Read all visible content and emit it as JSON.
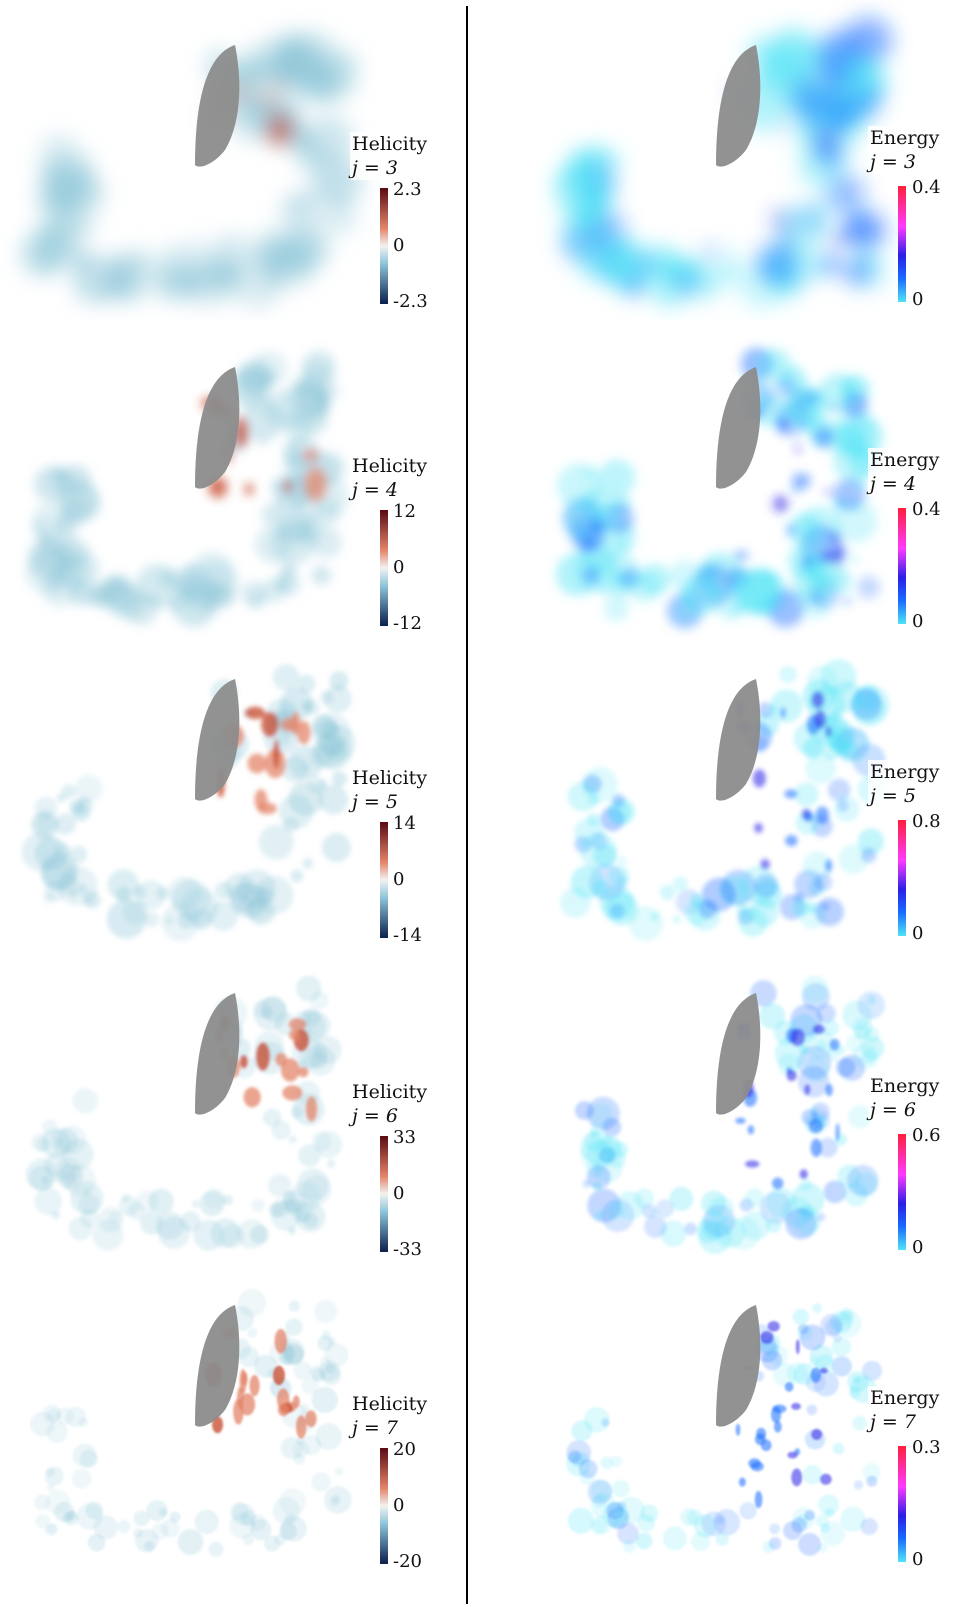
{
  "colors": {
    "helicity_top": "#5a0a14",
    "helicity_mid_hi": "#e3866a",
    "helicity_zero": "#f2f2f2",
    "helicity_mid_lo": "#8ec6d8",
    "helicity_bottom": "#0b1f4d",
    "energy_top": "#ff1f3a",
    "energy_mid_hi": "#ff3aff",
    "energy_mid": "#2a1fe8",
    "energy_mid_lo": "#1a6cff",
    "energy_bottom": "#4fe3f5",
    "shape_gray": "#8c8c8c"
  },
  "helicity": [
    {
      "title": "Helicity",
      "j": "j = 3",
      "max": "2.3",
      "zero": "0",
      "min": "-2.3"
    },
    {
      "title": "Helicity",
      "j": "j = 4",
      "max": "12",
      "zero": "0",
      "min": "-12"
    },
    {
      "title": "Helicity",
      "j": "j = 5",
      "max": "14",
      "zero": "0",
      "min": "-14"
    },
    {
      "title": "Helicity",
      "j": "j = 6",
      "max": "33",
      "zero": "0",
      "min": "-33"
    },
    {
      "title": "Helicity",
      "j": "j = 7",
      "max": "20",
      "zero": "0",
      "min": "-20"
    }
  ],
  "energy": [
    {
      "title": "Energy",
      "j": "j = 3",
      "max": "0.4",
      "min": "0"
    },
    {
      "title": "Energy",
      "j": "j = 4",
      "max": "0.4",
      "min": "0"
    },
    {
      "title": "Energy",
      "j": "j = 5",
      "max": "0.8",
      "min": "0"
    },
    {
      "title": "Energy",
      "j": "j = 6",
      "max": "0.6",
      "min": "0"
    },
    {
      "title": "Energy",
      "j": "j = 7",
      "max": "0.3",
      "min": "0"
    }
  ]
}
